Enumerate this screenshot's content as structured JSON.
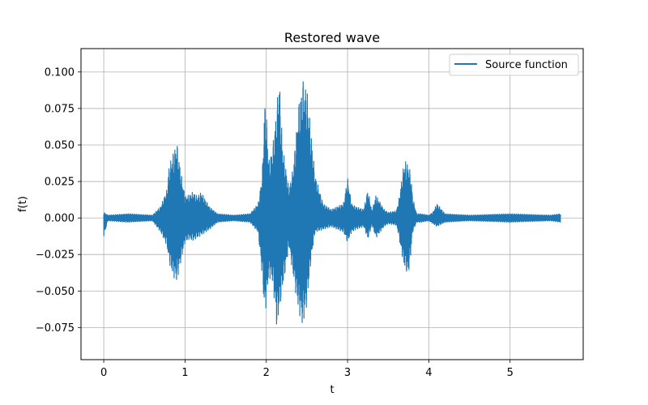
{
  "chart_data": {
    "type": "line",
    "title": "Restored wave",
    "xlabel": "t",
    "ylabel": "f(t)",
    "xlim": [
      -0.28,
      5.9
    ],
    "ylim": [
      -0.097,
      0.116
    ],
    "x_ticks": [
      0,
      1,
      2,
      3,
      4,
      5
    ],
    "x_tick_labels": [
      "0",
      "1",
      "2",
      "3",
      "4",
      "5"
    ],
    "y_ticks": [
      -0.075,
      -0.05,
      -0.025,
      0.0,
      0.025,
      0.05,
      0.075,
      0.1
    ],
    "y_tick_labels": [
      "−0.075",
      "−0.050",
      "−0.025",
      "0.000",
      "0.025",
      "0.050",
      "0.075",
      "0.100"
    ],
    "grid": true,
    "legend_position": "top-right",
    "series": [
      {
        "name": "Source function",
        "color": "#1f77b4",
        "envelope": {
          "t": [
            0.0,
            0.05,
            0.3,
            0.6,
            0.7,
            0.78,
            0.8,
            0.85,
            0.9,
            0.95,
            1.0,
            1.05,
            1.1,
            1.15,
            1.2,
            1.3,
            1.4,
            1.6,
            1.8,
            1.9,
            1.95,
            1.98,
            2.0,
            2.03,
            2.08,
            2.13,
            2.16,
            2.2,
            2.28,
            2.33,
            2.4,
            2.45,
            2.5,
            2.55,
            2.6,
            2.7,
            2.8,
            2.95,
            3.0,
            3.05,
            3.1,
            3.2,
            3.25,
            3.3,
            3.35,
            3.45,
            3.5,
            3.6,
            3.63,
            3.65,
            3.7,
            3.75,
            3.78,
            3.8,
            3.85,
            3.9,
            4.0,
            4.05,
            4.1,
            4.2,
            4.5,
            5.0,
            5.5,
            5.62
          ],
          "upper": [
            0.004,
            0.002,
            0.003,
            0.002,
            0.008,
            0.02,
            0.035,
            0.045,
            0.053,
            0.032,
            0.015,
            0.016,
            0.018,
            0.015,
            0.018,
            0.008,
            0.003,
            0.002,
            0.003,
            0.01,
            0.03,
            0.082,
            0.075,
            0.04,
            0.05,
            0.078,
            0.098,
            0.05,
            0.02,
            0.035,
            0.08,
            0.096,
            0.09,
            0.06,
            0.03,
            0.01,
            0.006,
            0.01,
            0.028,
            0.01,
            0.008,
            0.006,
            0.02,
            0.005,
            0.016,
            0.006,
            0.004,
            0.005,
            0.012,
            0.02,
            0.04,
            0.037,
            0.03,
            0.015,
            0.003,
            0.003,
            0.002,
            0.004,
            0.01,
            0.003,
            0.002,
            0.003,
            0.002,
            0.003
          ],
          "lower": [
            -0.013,
            -0.002,
            -0.003,
            -0.002,
            -0.01,
            -0.02,
            -0.03,
            -0.04,
            -0.044,
            -0.03,
            -0.017,
            -0.015,
            -0.016,
            -0.014,
            -0.012,
            -0.008,
            -0.003,
            -0.002,
            -0.003,
            -0.01,
            -0.04,
            -0.067,
            -0.06,
            -0.04,
            -0.045,
            -0.077,
            -0.065,
            -0.05,
            -0.02,
            -0.04,
            -0.065,
            -0.075,
            -0.06,
            -0.03,
            -0.01,
            -0.008,
            -0.006,
            -0.01,
            -0.017,
            -0.01,
            -0.008,
            -0.006,
            -0.015,
            -0.005,
            -0.014,
            -0.006,
            -0.004,
            -0.005,
            -0.012,
            -0.02,
            -0.035,
            -0.04,
            -0.025,
            -0.01,
            -0.003,
            -0.003,
            -0.002,
            -0.004,
            -0.006,
            -0.003,
            -0.002,
            -0.003,
            -0.002,
            -0.003
          ]
        }
      }
    ]
  }
}
